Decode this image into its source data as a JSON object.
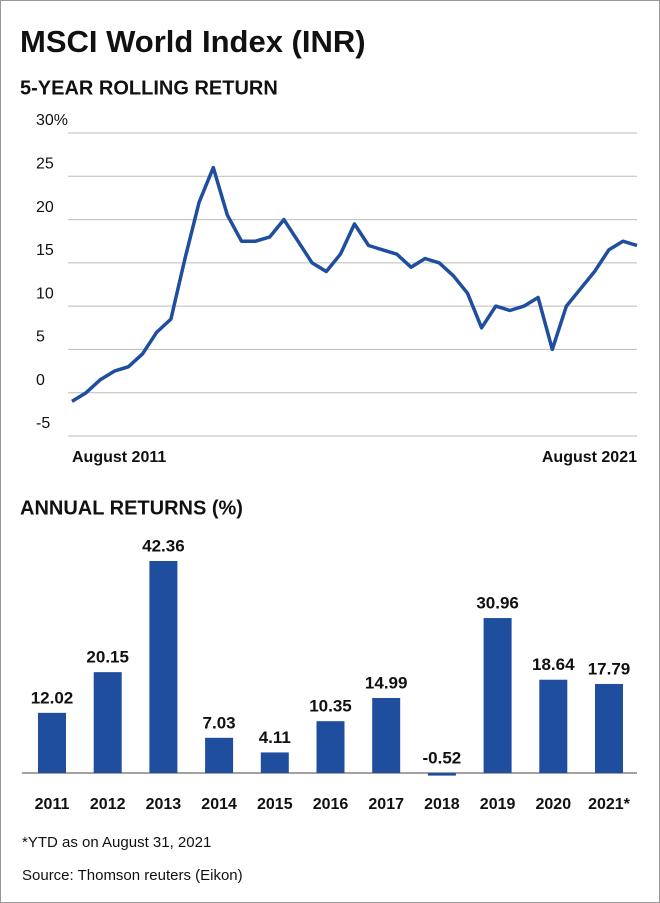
{
  "title": "MSCI World Index (INR)",
  "chart_data": [
    {
      "type": "line",
      "title": "5-YEAR ROLLING RETURN",
      "categories": [
        "August 2011",
        null,
        null,
        null,
        null,
        null,
        null,
        null,
        null,
        null,
        null,
        null,
        null,
        null,
        null,
        null,
        null,
        null,
        null,
        null,
        null,
        null,
        null,
        null,
        null,
        null,
        null,
        null,
        null,
        null,
        null,
        null,
        null,
        null,
        null,
        null,
        null,
        null,
        null,
        null,
        "August 2021"
      ],
      "series": [
        {
          "color": "#1f4e9e",
          "values": [
            -1,
            0,
            1.5,
            2.5,
            3,
            4.5,
            7,
            8.5,
            15.5,
            22,
            26,
            20.5,
            17.5,
            17.5,
            18,
            20,
            17.5,
            15,
            14,
            16,
            19.5,
            17,
            16.5,
            16,
            14.5,
            15.5,
            15,
            13.5,
            11.5,
            7.5,
            10,
            9.5,
            10,
            11,
            5,
            10,
            12,
            14,
            16.5,
            17.5,
            17
          ]
        }
      ],
      "ylim": [
        -5,
        30
      ],
      "yticks": [
        -5,
        0,
        5,
        10,
        15,
        20,
        25,
        {
          "value": 30,
          "label": "30%"
        }
      ],
      "grid": true
    },
    {
      "type": "bar",
      "title": "ANNUAL RETURNS (%)",
      "categories": [
        "2011",
        "2012",
        "2013",
        "2014",
        "2015",
        "2016",
        "2017",
        "2018",
        "2019",
        "2020",
        "2021*"
      ],
      "values": [
        12.02,
        20.15,
        42.36,
        7.03,
        4.11,
        10.35,
        14.99,
        -0.52,
        30.96,
        18.64,
        17.79
      ],
      "color": "#1f4e9e"
    }
  ],
  "notes": [
    "*YTD as on August 31, 2021",
    "Source: Thomson reuters (Eikon)"
  ]
}
